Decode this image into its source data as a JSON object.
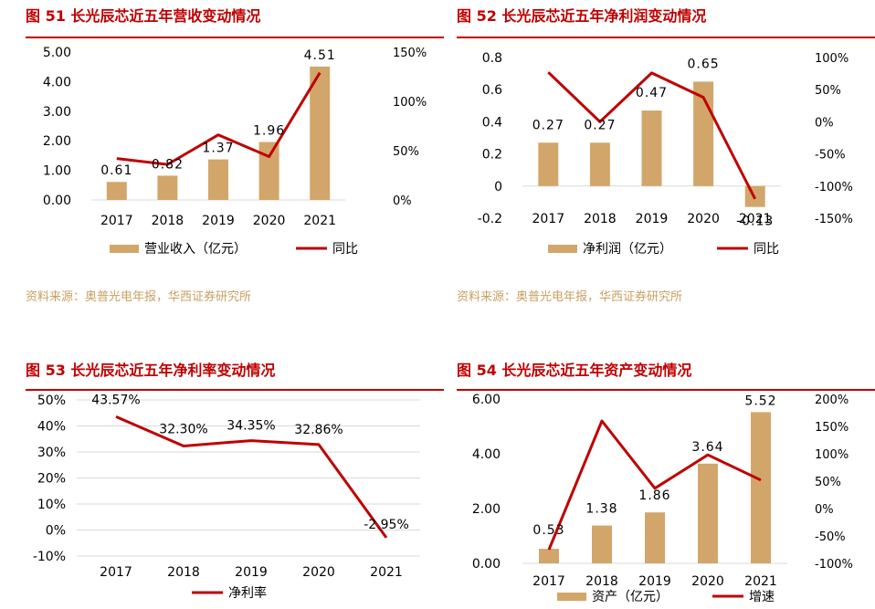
{
  "colors": {
    "bar": "#d2a66a",
    "line": "#c00000",
    "title": "#c00000",
    "source": "#c8a062"
  },
  "panels": [
    {
      "title": "图 51  长光辰芯近五年营收变动情况",
      "source": "资料来源：奥普光电年报，华西证券研究所",
      "chart_data": {
        "type": "bar",
        "categories": [
          "2017",
          "2018",
          "2019",
          "2020",
          "2021"
        ],
        "series": [
          {
            "name": "营业收入（亿元）",
            "type": "bar",
            "axis": "left",
            "values": [
              0.61,
              0.82,
              1.37,
              1.96,
              4.51
            ]
          },
          {
            "name": "同比",
            "type": "line",
            "axis": "right",
            "values": [
              42,
              36,
              66,
              44,
              129
            ]
          }
        ],
        "data_labels": [
          "0.61",
          "0.82",
          "1.37",
          "1.96",
          "4.51"
        ],
        "y_left": {
          "ticks": [
            "5.00",
            "4.00",
            "3.00",
            "2.00",
            "1.00",
            "0.00"
          ],
          "lim": [
            0,
            5
          ]
        },
        "y_right": {
          "ticks": [
            "150%",
            "100%",
            "50%",
            "0%"
          ],
          "lim": [
            0,
            150
          ]
        },
        "legend": "bottom"
      }
    },
    {
      "title": "图 52  长光辰芯近五年净利润变动情况",
      "source": "资料来源：奥普光电年报，华西证券研究所",
      "chart_data": {
        "type": "bar",
        "categories": [
          "2017",
          "2018",
          "2019",
          "2020",
          "2021"
        ],
        "series": [
          {
            "name": "净利润（亿元）",
            "type": "bar",
            "axis": "left",
            "values": [
              0.27,
              0.27,
              0.47,
              0.65,
              -0.13
            ]
          },
          {
            "name": "同比",
            "type": "line",
            "axis": "right",
            "values": [
              77,
              0,
              76,
              38,
              -120
            ]
          }
        ],
        "data_labels": [
          "0.27",
          "0.27",
          "0.47",
          "0.65",
          "-0.13"
        ],
        "y_left": {
          "ticks": [
            "0.8",
            "0.6",
            "0.4",
            "0.2",
            "0",
            "-0.2"
          ],
          "lim": [
            -0.2,
            0.8
          ]
        },
        "y_right": {
          "ticks": [
            "100%",
            "50%",
            "0%",
            "-50%",
            "-100%",
            "-150%"
          ],
          "lim": [
            -150,
            100
          ]
        },
        "legend": "bottom"
      }
    },
    {
      "title": "图 53  长光辰芯近五年净利率变动情况",
      "source": "",
      "chart_data": {
        "type": "line",
        "categories": [
          "2017",
          "2018",
          "2019",
          "2020",
          "2021"
        ],
        "series": [
          {
            "name": "净利率",
            "type": "line",
            "axis": "left",
            "values": [
              43.57,
              32.3,
              34.35,
              32.86,
              -2.95
            ]
          }
        ],
        "data_labels": [
          "43.57%",
          "32.30%",
          "34.35%",
          "32.86%",
          "-2.95%"
        ],
        "y_left": {
          "ticks": [
            "50%",
            "40%",
            "30%",
            "20%",
            "10%",
            "0%",
            "-10%"
          ],
          "lim": [
            -10,
            50
          ]
        },
        "grid": true,
        "legend": "bottom"
      }
    },
    {
      "title": "图 54  长光辰芯近五年资产变动情况",
      "source": "",
      "chart_data": {
        "type": "bar",
        "categories": [
          "2017",
          "2018",
          "2019",
          "2020",
          "2021"
        ],
        "series": [
          {
            "name": "资产（亿元）",
            "type": "bar",
            "axis": "left",
            "values": [
              0.53,
              1.38,
              1.86,
              3.64,
              5.52
            ]
          },
          {
            "name": "增速",
            "type": "line",
            "axis": "right",
            "values": [
              -75,
              160,
              37,
              98,
              52
            ]
          }
        ],
        "data_labels": [
          "0.53",
          "1.38",
          "1.86",
          "3.64",
          "5.52"
        ],
        "y_left": {
          "ticks": [
            "6.00",
            "4.00",
            "2.00",
            "0.00"
          ],
          "lim": [
            0,
            6
          ]
        },
        "y_right": {
          "ticks": [
            "200%",
            "150%",
            "100%",
            "50%",
            "0%",
            "-50%",
            "-100%"
          ],
          "lim": [
            -100,
            200
          ]
        },
        "legend": "bottom"
      }
    }
  ]
}
